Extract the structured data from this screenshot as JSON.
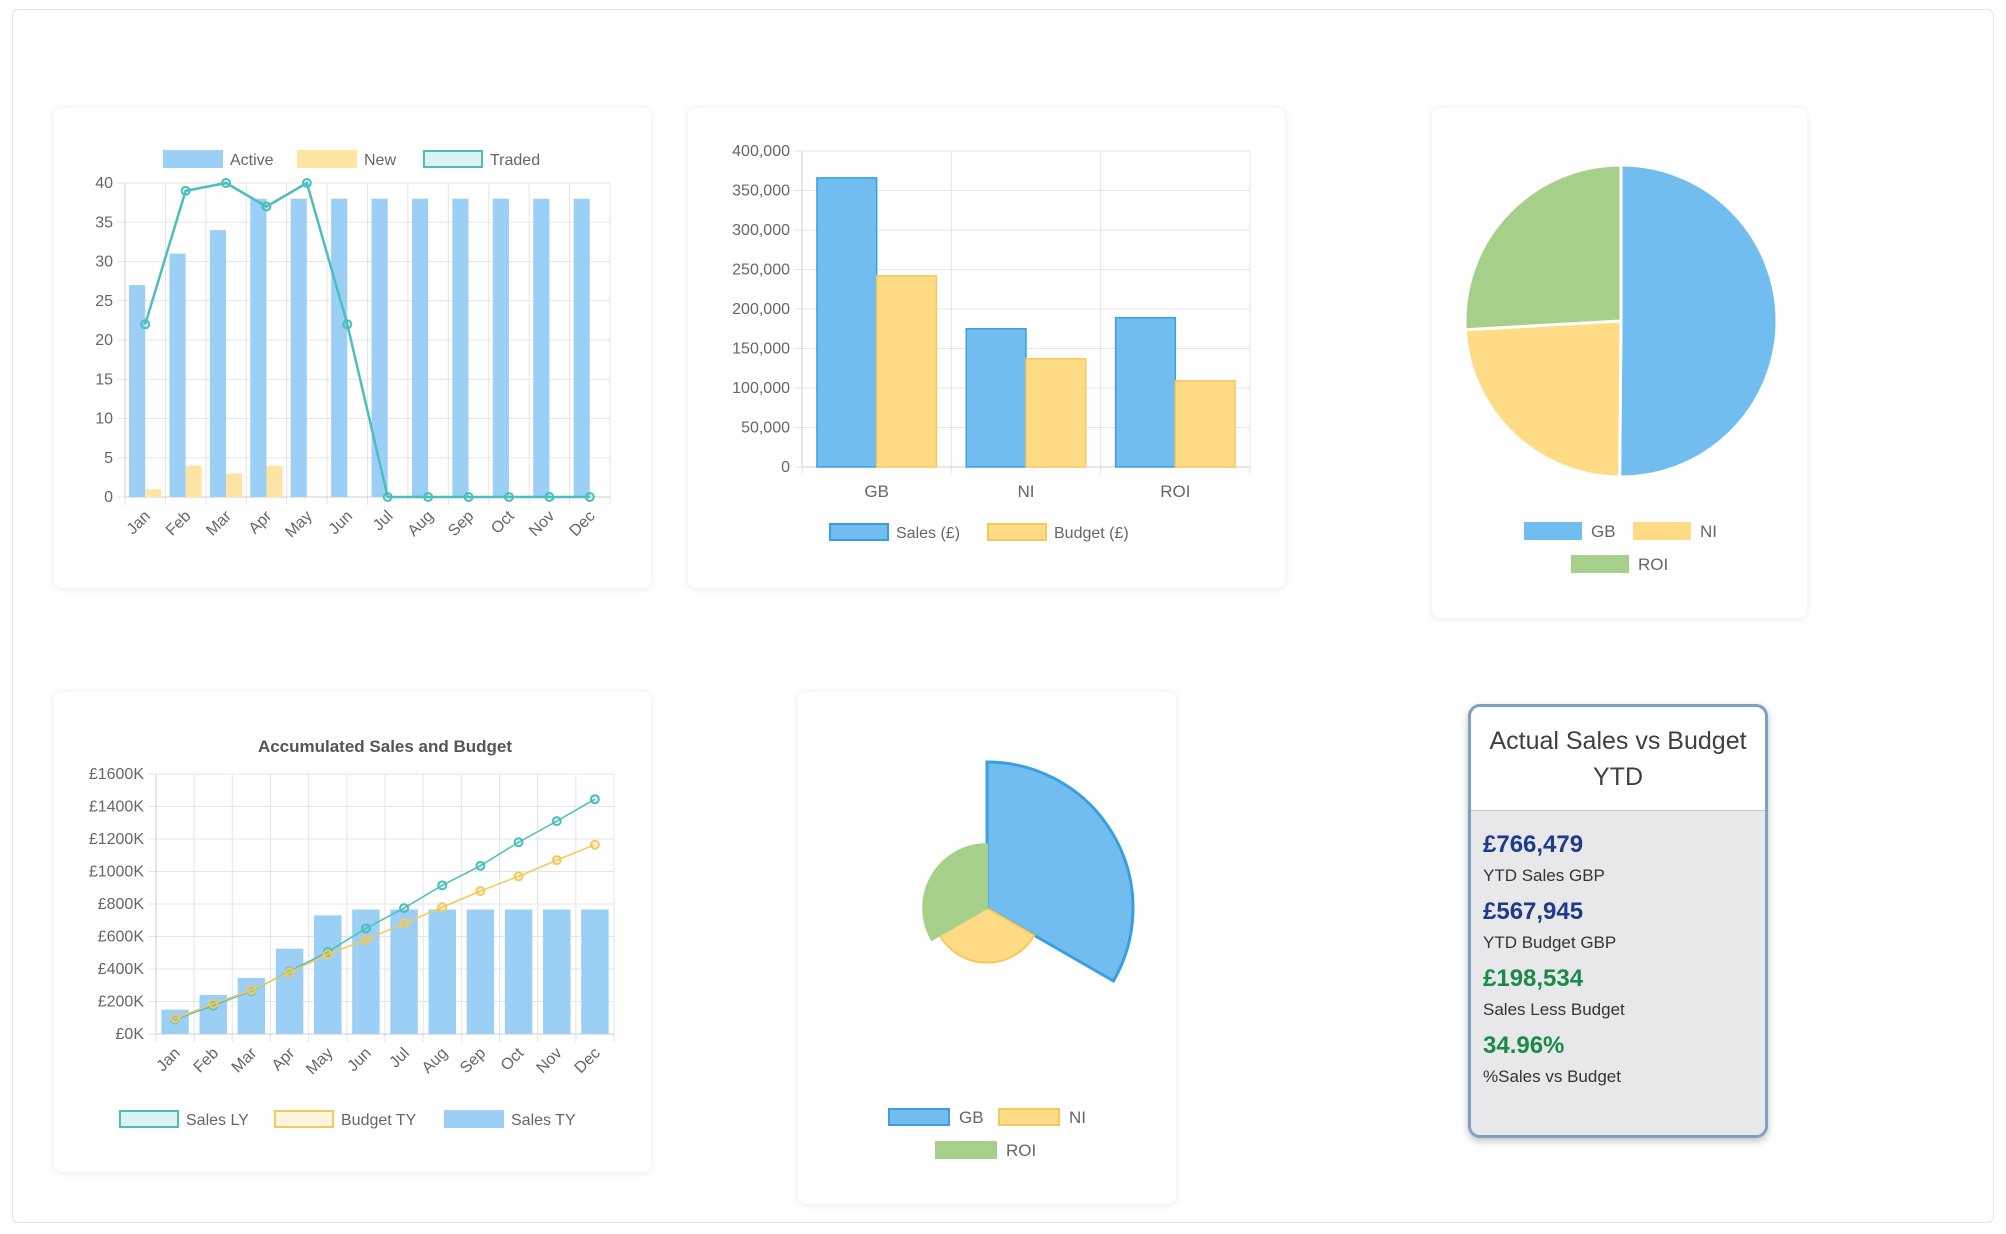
{
  "chart_data": [
    {
      "type": "bar",
      "categories": [
        "Jan",
        "Feb",
        "Mar",
        "Apr",
        "May",
        "Jun",
        "Jul",
        "Aug",
        "Sep",
        "Oct",
        "Nov",
        "Dec"
      ],
      "series": [
        {
          "name": "Active",
          "kind": "bar",
          "color": "#9ccff5",
          "values": [
            27,
            31,
            34,
            38,
            38,
            38,
            38,
            38,
            38,
            38,
            38,
            38
          ]
        },
        {
          "name": "New",
          "kind": "bar",
          "color": "#ffe4a3",
          "values": [
            1,
            4,
            3,
            4,
            0,
            0,
            0,
            0,
            0,
            0,
            0,
            0
          ]
        },
        {
          "name": "Traded",
          "kind": "line",
          "color": "#4dbdbd",
          "values": [
            22,
            39,
            40,
            37,
            40,
            22,
            0,
            0,
            0,
            0,
            0,
            0
          ]
        }
      ],
      "ylim": [
        0,
        40
      ],
      "yticks": [
        "0",
        "5",
        "10",
        "15",
        "20",
        "25",
        "30",
        "35",
        "40"
      ],
      "grid": true,
      "legend": "top"
    },
    {
      "type": "bar",
      "categories": [
        "GB",
        "NI",
        "ROI"
      ],
      "series": [
        {
          "name": "Sales (£)",
          "color": "#72bdf0",
          "border": "#3a9fe0",
          "values": [
            366000,
            175000,
            189000
          ]
        },
        {
          "name": "Budget (£)",
          "color": "#ffdb85",
          "border": "#f5c85a",
          "values": [
            242000,
            137000,
            109000
          ]
        }
      ],
      "ylim": [
        0,
        400000
      ],
      "yticks": [
        "0",
        "50,000",
        "100,000",
        "150,000",
        "200,000",
        "250,000",
        "300,000",
        "350,000",
        "400,000"
      ],
      "grid": true,
      "legend": "bottom"
    },
    {
      "type": "pie",
      "labels": [
        "GB",
        "NI",
        "ROI"
      ],
      "values": [
        366000,
        175000,
        189000
      ],
      "colors": [
        "#72bdf0",
        "#ffdb85",
        "#a6d08a"
      ],
      "legend": "bottom"
    },
    {
      "type": "bar",
      "title": "Accumulated Sales and Budget",
      "categories": [
        "Jan",
        "Feb",
        "Mar",
        "Apr",
        "May",
        "Jun",
        "Jul",
        "Aug",
        "Sep",
        "Oct",
        "Nov",
        "Dec"
      ],
      "series": [
        {
          "name": "Sales LY",
          "kind": "line",
          "color": "#4dbdbd",
          "values": [
            90,
            175,
            265,
            385,
            505,
            650,
            775,
            915,
            1035,
            1180,
            1310,
            1445
          ]
        },
        {
          "name": "Budget TY",
          "kind": "line",
          "color": "#f5c85a",
          "values": [
            95,
            185,
            270,
            380,
            490,
            580,
            680,
            780,
            880,
            970,
            1070,
            1165
          ]
        },
        {
          "name": "Sales TY",
          "kind": "bar",
          "color": "#9ccff5",
          "values": [
            150,
            240,
            345,
            525,
            730,
            766,
            766,
            766,
            766,
            766,
            766,
            766
          ]
        }
      ],
      "ylim": [
        0,
        1600
      ],
      "yticks": [
        "£0K",
        "£200K",
        "£400K",
        "£600K",
        "£800K",
        "£1000K",
        "£1200K",
        "£1400K",
        "£1600K"
      ],
      "grid": true,
      "legend": "bottom"
    },
    {
      "type": "polarArea",
      "labels": [
        "GB",
        "NI",
        "ROI"
      ],
      "values": [
        366000,
        137000,
        160000
      ],
      "colors": [
        "#72bdf0",
        "#ffdb85",
        "#a6d08a"
      ],
      "legend": "bottom"
    }
  ],
  "kpi": {
    "title": "Actual Sales vs Budget YTD",
    "items": [
      {
        "value": "£766,479",
        "label": "YTD Sales GBP",
        "tone": "blue"
      },
      {
        "value": "£567,945",
        "label": "YTD Budget GBP",
        "tone": "blue"
      },
      {
        "value": "£198,534",
        "label": "Sales Less Budget",
        "tone": "green"
      },
      {
        "value": "34.96%",
        "label": "%Sales vs Budget",
        "tone": "green"
      }
    ]
  }
}
